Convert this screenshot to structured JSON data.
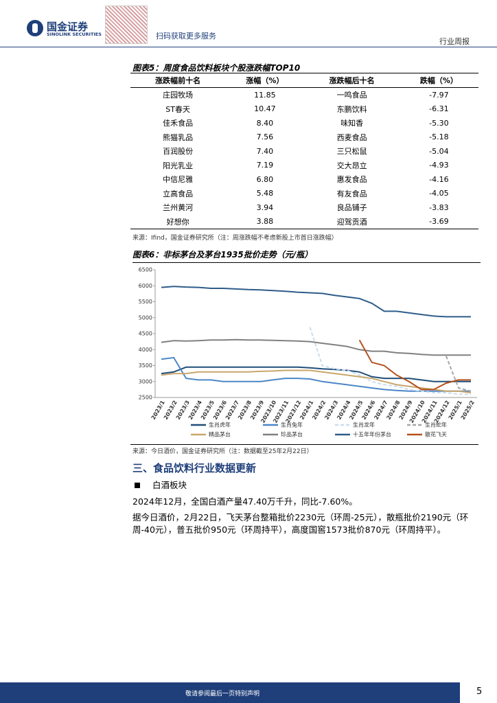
{
  "header": {
    "company": "国金证券",
    "company_en": "SINOLINK SECURITIES",
    "qr_text": "扫码获取更多服务",
    "report_type": "行业周报"
  },
  "table": {
    "title": "图表5：周度食品饮料板块个股涨跌幅TOP10",
    "columns": [
      "涨跌幅前十名",
      "涨幅（%）",
      "涨跌幅后十名",
      "跌幅（%）"
    ],
    "rows": [
      [
        "庄园牧场",
        "11.85",
        "一鸣食品",
        "-7.97"
      ],
      [
        "ST春天",
        "10.47",
        "东鹏饮料",
        "-6.31"
      ],
      [
        "佳禾食品",
        "8.40",
        "味知香",
        "-5.30"
      ],
      [
        "熊猫乳品",
        "7.56",
        "西麦食品",
        "-5.18"
      ],
      [
        "百润股份",
        "7.40",
        "三只松鼠",
        "-5.04"
      ],
      [
        "阳光乳业",
        "7.19",
        "交大昂立",
        "-4.93"
      ],
      [
        "中信尼雅",
        "6.80",
        "惠发食品",
        "-4.16"
      ],
      [
        "立高食品",
        "5.48",
        "有友食品",
        "-4.05"
      ],
      [
        "兰州黄河",
        "3.94",
        "良品铺子",
        "-3.83"
      ],
      [
        "好想你",
        "3.88",
        "迎驾贡酒",
        "-3.69"
      ]
    ],
    "source": "来源：Ifind，国金证券研究所（注：周涨跌幅不考虑新股上市首日涨跌幅）"
  },
  "chart_data": {
    "type": "line",
    "title": "图表6：非标茅台及茅台1935批价走势（元/瓶）",
    "categories": [
      "2023/1",
      "2023/2",
      "2023/3",
      "2023/4",
      "2023/5",
      "2023/6",
      "2023/7",
      "2023/8",
      "2023/9",
      "2023/10",
      "2023/11",
      "2023/12",
      "2024/1",
      "2024/2",
      "2024/3",
      "2024/4",
      "2024/5",
      "2024/6",
      "2024/7",
      "2024/8",
      "2024/9",
      "2024/10",
      "2024/11",
      "2024/12",
      "2025/1",
      "2025/2"
    ],
    "ylim": [
      2500,
      6500
    ],
    "yticks": [
      2500,
      3000,
      3500,
      4000,
      4500,
      5000,
      5500,
      6000,
      6500
    ],
    "series": [
      {
        "name": "生肖虎年",
        "color": "#1f4e79",
        "dash": false,
        "values": [
          3250,
          3300,
          3450,
          3450,
          3450,
          3450,
          3450,
          3450,
          3450,
          3450,
          3450,
          3450,
          3430,
          3400,
          3380,
          3350,
          3300,
          3150,
          3100,
          3100,
          3100,
          3050,
          3000,
          3000,
          3000,
          3000
        ]
      },
      {
        "name": "生肖兔年",
        "color": "#4a86c8",
        "dash": false,
        "values": [
          3700,
          3750,
          3100,
          3050,
          3050,
          3000,
          3000,
          3000,
          3000,
          3050,
          3100,
          3100,
          3080,
          3000,
          2950,
          2900,
          2850,
          2800,
          2750,
          2720,
          2700,
          2700,
          2700,
          2700,
          2700,
          2700
        ]
      },
      {
        "name": "生肖龙年",
        "color": "#c9dcef",
        "dash": true,
        "values": [
          null,
          null,
          null,
          null,
          null,
          null,
          null,
          null,
          null,
          null,
          null,
          null,
          4700,
          3500,
          3400,
          3350,
          3200,
          3000,
          2900,
          2850,
          2750,
          2700,
          2650,
          2650,
          2600,
          2600
        ]
      },
      {
        "name": "生肖蛇年",
        "color": "#a6a6a6",
        "dash": true,
        "values": [
          null,
          null,
          null,
          null,
          null,
          null,
          null,
          null,
          null,
          null,
          null,
          null,
          null,
          null,
          null,
          null,
          null,
          null,
          null,
          null,
          null,
          null,
          null,
          3800,
          2800,
          2700
        ]
      },
      {
        "name": "精品茅台",
        "color": "#c9a66b",
        "dash": false,
        "values": [
          3200,
          3250,
          3250,
          3300,
          3300,
          3300,
          3300,
          3300,
          3320,
          3330,
          3350,
          3350,
          3350,
          3300,
          3250,
          3200,
          3150,
          3100,
          3000,
          2900,
          2850,
          2800,
          2750,
          2700,
          2700,
          2650
        ]
      },
      {
        "name": "珍品茅台",
        "color": "#808080",
        "dash": false,
        "values": [
          4230,
          4280,
          4270,
          4280,
          4300,
          4300,
          4310,
          4300,
          4300,
          4290,
          4280,
          4270,
          4250,
          4200,
          4150,
          4100,
          4000,
          3950,
          3950,
          3900,
          3880,
          3850,
          3830,
          3830,
          3830,
          3830
        ]
      },
      {
        "name": "十五年年份茅台",
        "color": "#2e5c8a",
        "dash": false,
        "values": [
          5950,
          5980,
          5960,
          5950,
          5920,
          5920,
          5900,
          5880,
          5870,
          5850,
          5830,
          5800,
          5780,
          5760,
          5700,
          5650,
          5600,
          5450,
          5200,
          5200,
          5150,
          5100,
          5050,
          5030,
          5030,
          5030
        ]
      },
      {
        "name": "散花飞天",
        "color": "#b5501c",
        "dash": false,
        "values": [
          null,
          null,
          null,
          null,
          null,
          null,
          null,
          null,
          null,
          null,
          null,
          null,
          null,
          null,
          null,
          null,
          4300,
          3600,
          3500,
          3200,
          3000,
          2750,
          2750,
          2950,
          3050,
          3050
        ]
      }
    ],
    "source": "来源：今日酒价，国金证券研究所（注：数据截至25年2月22日）"
  },
  "section": {
    "heading": "三、食品饮料行业数据更新",
    "bullet": "白酒板块",
    "paragraphs": [
      "2024年12月，全国白酒产量47.40万千升，同比-7.60%。",
      "据今日酒价，2月22日，飞天茅台整箱批价2230元（环周-25元），散瓶批价2190元（环周-40元），普五批价950元（环周持平），高度国窖1573批价870元（环周持平）。"
    ]
  },
  "footer": {
    "disclaimer": "敬请参阅最后一页特别声明",
    "page": "5"
  }
}
